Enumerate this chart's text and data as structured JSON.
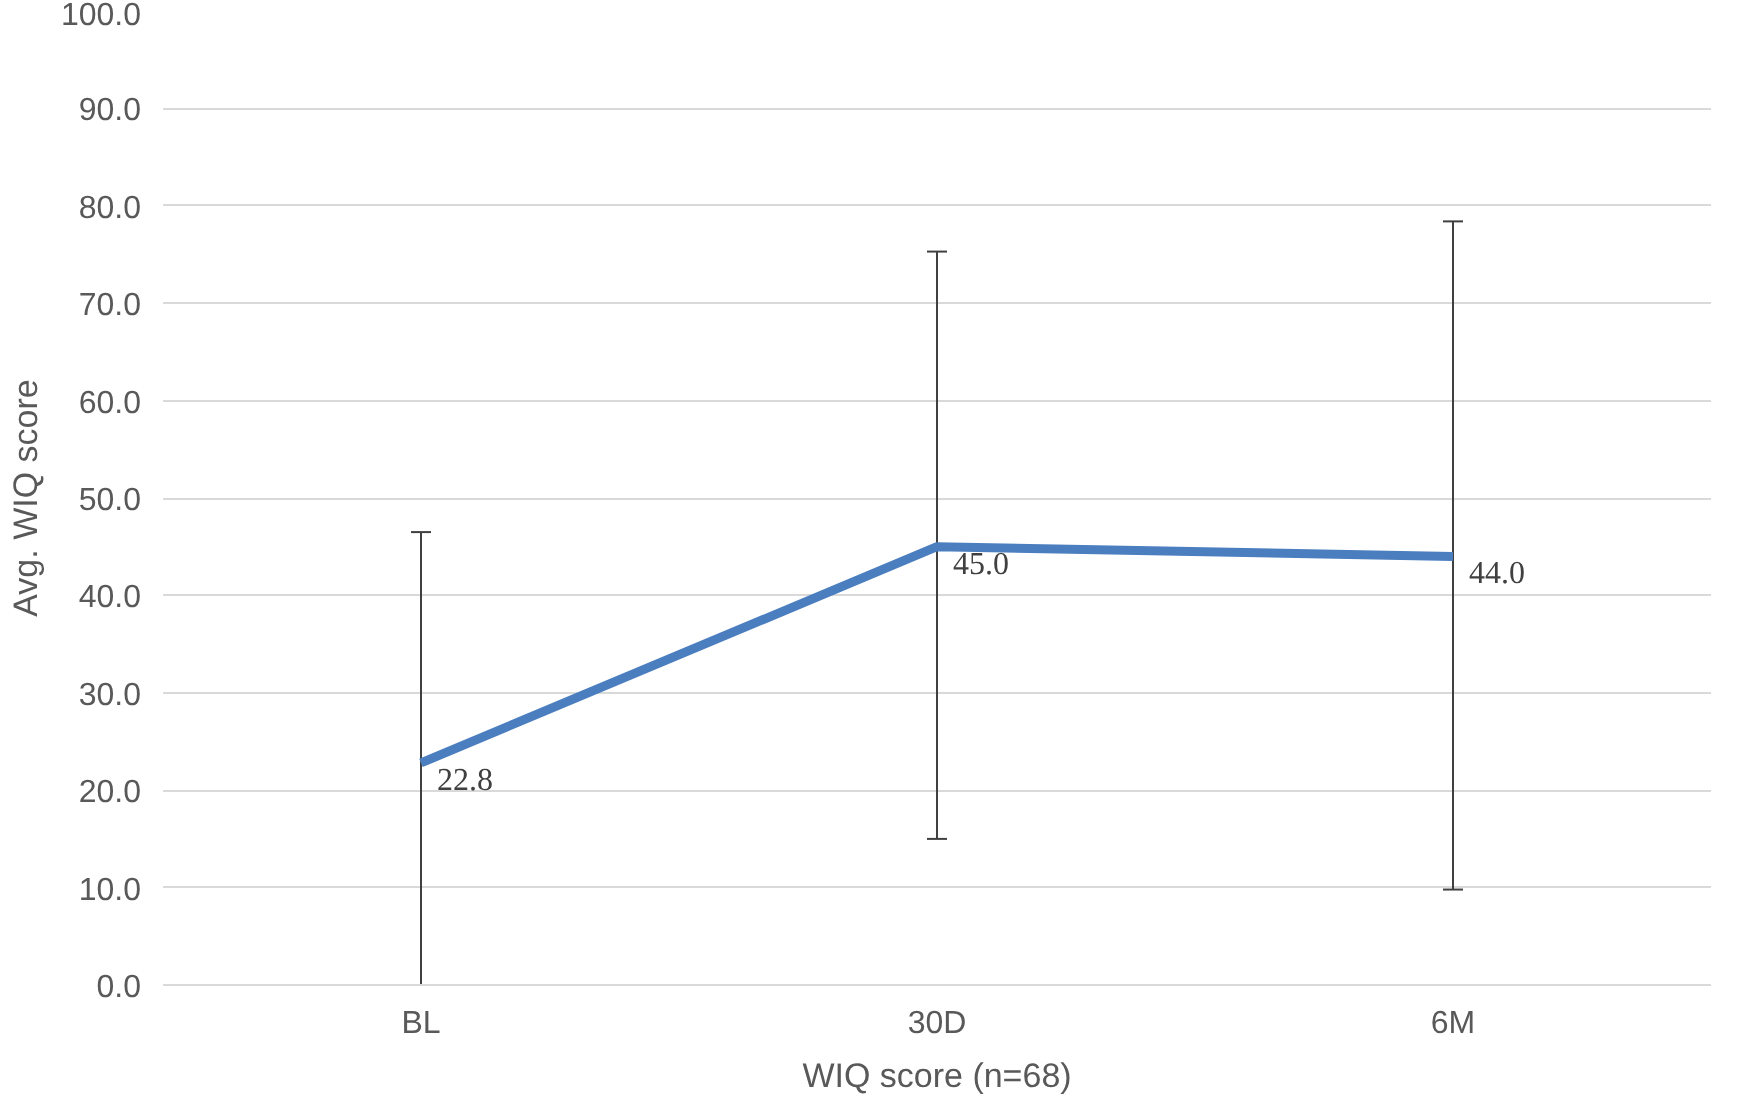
{
  "chart_data": {
    "type": "line",
    "xlabel": "WIQ score (n=68)",
    "ylabel": "Avg. WIQ score",
    "categories": [
      "BL",
      "30D",
      "6M"
    ],
    "series": [
      {
        "color": "#4a7ebf",
        "values": [
          22.8,
          45.0,
          44.0
        ],
        "value_labels": [
          "22.8",
          "45.0",
          "44.0"
        ],
        "errors": [
          [
            0,
            46.5
          ],
          [
            15.0,
            75.3
          ],
          [
            9.8,
            78.4
          ]
        ]
      }
    ],
    "ylim": [
      0,
      100
    ],
    "yticks": [
      {
        "value": 0,
        "label": "0.0"
      },
      {
        "value": 10,
        "label": "10.0"
      },
      {
        "value": 20,
        "label": "20.0"
      },
      {
        "value": 30,
        "label": "30.0"
      },
      {
        "value": 40,
        "label": "40.0"
      },
      {
        "value": 50,
        "label": "50.0"
      },
      {
        "value": 60,
        "label": "60.0"
      },
      {
        "value": 70,
        "label": "70.0"
      },
      {
        "value": 80,
        "label": "80.0"
      },
      {
        "value": 90,
        "label": "90.0"
      },
      {
        "value": 100,
        "label": "100.0"
      }
    ],
    "grid": "y",
    "marker": "none",
    "line_style": "solid"
  }
}
